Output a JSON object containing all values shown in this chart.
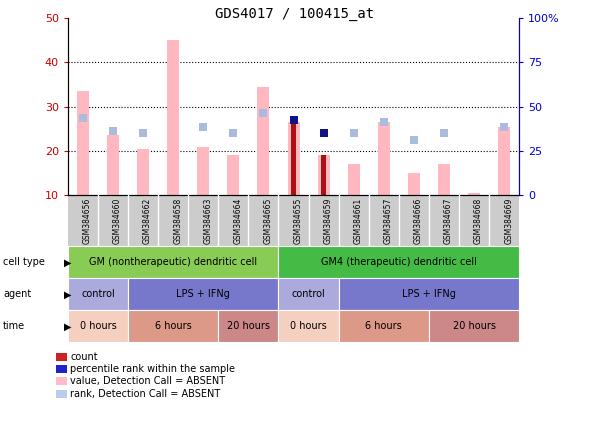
{
  "title": "GDS4017 / 100415_at",
  "samples": [
    "GSM384656",
    "GSM384660",
    "GSM384662",
    "GSM384658",
    "GSM384663",
    "GSM384664",
    "GSM384665",
    "GSM384655",
    "GSM384659",
    "GSM384661",
    "GSM384657",
    "GSM384666",
    "GSM384667",
    "GSM384668",
    "GSM384669"
  ],
  "pink_bars": [
    33.5,
    23.5,
    20.5,
    45.0,
    21.0,
    19.0,
    34.5,
    26.5,
    19.0,
    17.0,
    26.5,
    15.0,
    17.0,
    10.5,
    25.5
  ],
  "dark_red_bars": [
    0,
    0,
    0,
    0,
    0,
    0,
    0,
    26.5,
    19.0,
    0,
    0,
    0,
    0,
    0,
    0
  ],
  "blue_squares_left": [
    27.5,
    24.5,
    24.0,
    0,
    25.5,
    24.0,
    28.5,
    0,
    24.0,
    24.0,
    26.5,
    22.5,
    24.0,
    0,
    25.5
  ],
  "dark_blue_squares_left": [
    0,
    0,
    0,
    0,
    0,
    0,
    0,
    27.0,
    24.0,
    0,
    0,
    0,
    0,
    0,
    0
  ],
  "ylim_left": [
    10,
    50
  ],
  "ylim_right": [
    0,
    100
  ],
  "yticks_left": [
    10,
    20,
    30,
    40,
    50
  ],
  "yticks_right": [
    0,
    25,
    50,
    75,
    100
  ],
  "ytick_labels_right": [
    "0",
    "25",
    "50",
    "75",
    "100%"
  ],
  "cell_type_labels": [
    {
      "text": "GM (nontherapeutic) dendritic cell",
      "start": 0,
      "end": 7,
      "color": "#88cc55"
    },
    {
      "text": "GM4 (therapeutic) dendritic cell",
      "start": 7,
      "end": 15,
      "color": "#44bb44"
    }
  ],
  "agent_labels": [
    {
      "text": "control",
      "start": 0,
      "end": 2,
      "color": "#aaaadd"
    },
    {
      "text": "LPS + IFNg",
      "start": 2,
      "end": 7,
      "color": "#7777cc"
    },
    {
      "text": "control",
      "start": 7,
      "end": 9,
      "color": "#aaaadd"
    },
    {
      "text": "LPS + IFNg",
      "start": 9,
      "end": 15,
      "color": "#7777cc"
    }
  ],
  "time_labels": [
    {
      "text": "0 hours",
      "start": 0,
      "end": 2,
      "color": "#f5cfc0"
    },
    {
      "text": "6 hours",
      "start": 2,
      "end": 5,
      "color": "#dd9988"
    },
    {
      "text": "20 hours",
      "start": 5,
      "end": 7,
      "color": "#cc8888"
    },
    {
      "text": "0 hours",
      "start": 7,
      "end": 9,
      "color": "#f5cfc0"
    },
    {
      "text": "6 hours",
      "start": 9,
      "end": 12,
      "color": "#dd9988"
    },
    {
      "text": "20 hours",
      "start": 12,
      "end": 15,
      "color": "#cc8888"
    }
  ],
  "legend_items": [
    {
      "color": "#cc2222",
      "label": "count"
    },
    {
      "color": "#2222cc",
      "label": "percentile rank within the sample"
    },
    {
      "color": "#ffbbcc",
      "label": "value, Detection Call = ABSENT"
    },
    {
      "color": "#bbccee",
      "label": "rank, Detection Call = ABSENT"
    }
  ],
  "pink_color": "#ffb8c0",
  "dark_red_color": "#aa1111",
  "blue_sq_color": "#aabbdd",
  "dark_blue_color": "#111188",
  "left_axis_color": "#cc0000",
  "right_axis_color": "#0000cc",
  "xtick_bg_color": "#cccccc",
  "bar_width": 0.4
}
